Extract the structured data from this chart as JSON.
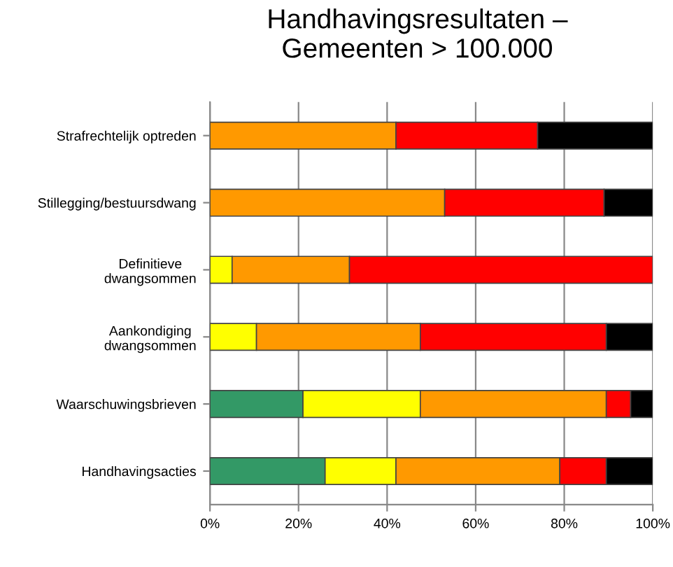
{
  "chart_data": {
    "type": "bar",
    "orientation": "horizontal",
    "stacked": true,
    "title": "Handhavingsresultaten –\nGemeenten > 100.000",
    "categories": [
      "Strafrechtelijk optreden",
      "Stillegging/bestuursdwang",
      "Definitieve\ndwangsommen",
      "Aankondiging\ndwangsommen",
      "Waarschuwingsbrieven",
      "Handhavingsacties"
    ],
    "series": [
      {
        "color": "#339966",
        "values": [
          0,
          0,
          0,
          0,
          21,
          26
        ]
      },
      {
        "color": "#ffff00",
        "values": [
          0,
          0,
          5,
          10.5,
          26.5,
          16
        ]
      },
      {
        "color": "#ff9900",
        "values": [
          42,
          53,
          26.5,
          37,
          42,
          37
        ]
      },
      {
        "color": "#ff0000",
        "values": [
          32,
          36,
          68.5,
          42,
          5.5,
          10.5
        ]
      },
      {
        "color": "#000000",
        "values": [
          26,
          11,
          0,
          10.5,
          5,
          10.5
        ]
      }
    ],
    "xlim": [
      0,
      100
    ],
    "xticks": [
      {
        "value": 0,
        "label": "0%"
      },
      {
        "value": 20,
        "label": "20%"
      },
      {
        "value": 40,
        "label": "40%"
      },
      {
        "value": 60,
        "label": "60%"
      },
      {
        "value": 80,
        "label": "80%"
      },
      {
        "value": 100,
        "label": "100%"
      }
    ],
    "grid": "x",
    "legend": false
  }
}
